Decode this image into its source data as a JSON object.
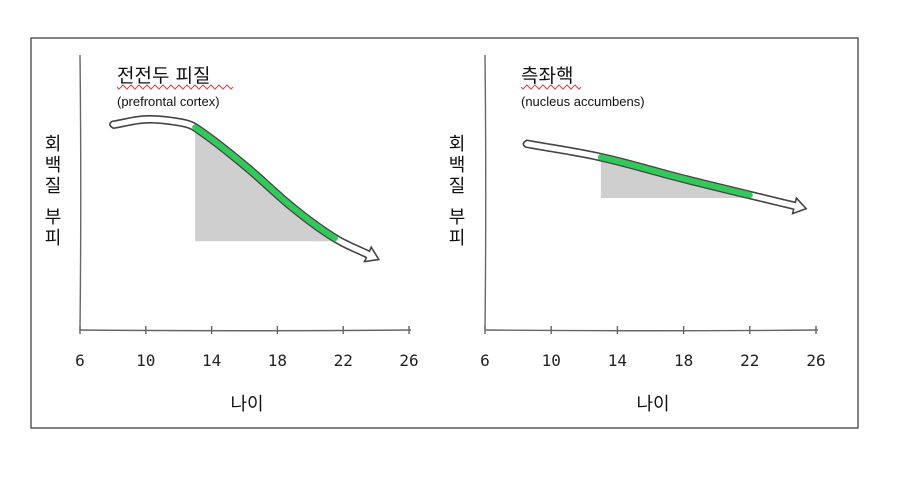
{
  "chart_data": [
    {
      "type": "line",
      "title": "전전두 피질",
      "subtitle": "(prefrontal cortex)",
      "xlabel": "나이",
      "ylabel": "회백질 부피",
      "x_ticks": [
        "6",
        "10",
        "14",
        "18",
        "22",
        "26"
      ],
      "xlim": [
        6,
        26
      ],
      "ylim": [
        0,
        1
      ],
      "series": [
        {
          "x": [
            8,
            10,
            12,
            13,
            16,
            19,
            21.5,
            23.5
          ],
          "y": [
            0.76,
            0.78,
            0.77,
            0.75,
            0.61,
            0.45,
            0.34,
            0.28
          ]
        }
      ],
      "highlight": {
        "x_range": [
          13,
          21.5
        ],
        "color": "#33c95a",
        "fill": "#cfcfcf"
      },
      "grid": false
    },
    {
      "type": "line",
      "title": "측좌핵",
      "subtitle": "(nucleus accumbens)",
      "xlabel": "나이",
      "ylabel": "회백질 부피",
      "x_ticks": [
        "6",
        "10",
        "14",
        "18",
        "22",
        "26"
      ],
      "xlim": [
        6,
        26
      ],
      "ylim": [
        0,
        1
      ],
      "series": [
        {
          "x": [
            8.5,
            13,
            18,
            22,
            24.7
          ],
          "y": [
            0.69,
            0.64,
            0.56,
            0.5,
            0.46
          ]
        }
      ],
      "highlight": {
        "x_range": [
          13,
          22
        ],
        "color": "#33c95a",
        "fill": "#cfcfcf"
      },
      "grid": false
    }
  ]
}
